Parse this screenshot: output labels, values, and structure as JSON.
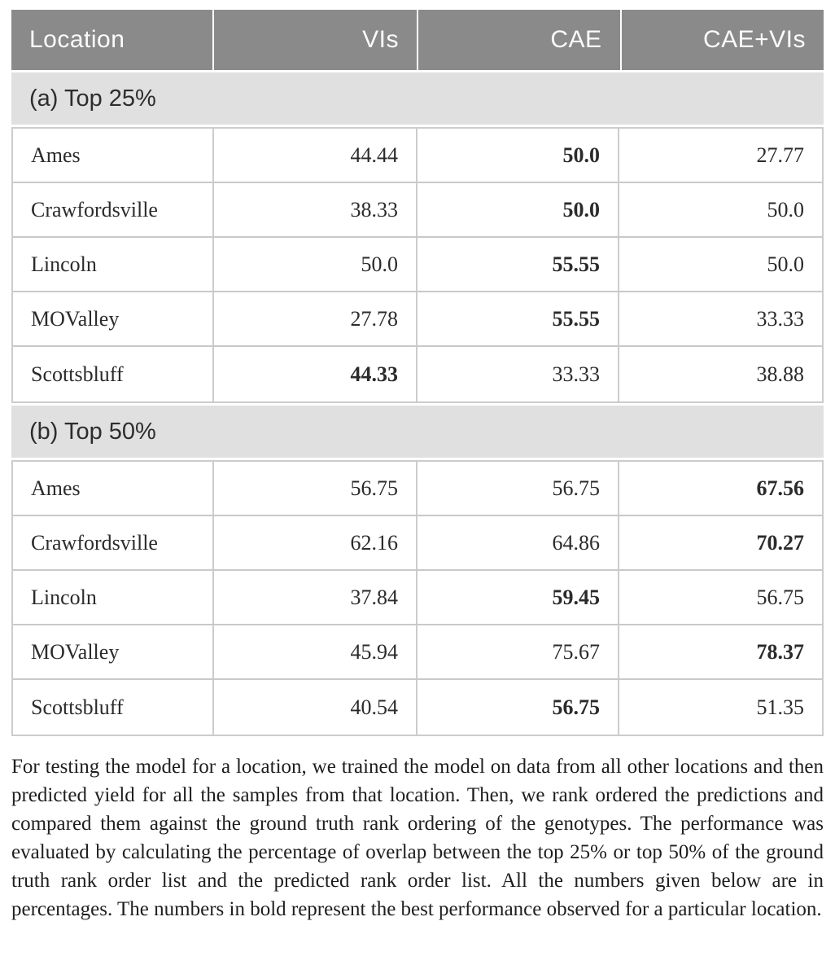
{
  "table": {
    "columns": [
      "Location",
      "VIs",
      "CAE",
      "CAE+VIs"
    ],
    "sections": [
      {
        "label": "(a) Top 25%",
        "rows": [
          {
            "location": "Ames",
            "values": [
              "44.44",
              "50.0",
              "27.77"
            ],
            "bold": [
              false,
              true,
              false
            ]
          },
          {
            "location": "Crawfordsville",
            "values": [
              "38.33",
              "50.0",
              "50.0"
            ],
            "bold": [
              false,
              true,
              false
            ]
          },
          {
            "location": "Lincoln",
            "values": [
              "50.0",
              "55.55",
              "50.0"
            ],
            "bold": [
              false,
              true,
              false
            ]
          },
          {
            "location": "MOValley",
            "values": [
              "27.78",
              "55.55",
              "33.33"
            ],
            "bold": [
              false,
              true,
              false
            ]
          },
          {
            "location": "Scottsbluff",
            "values": [
              "44.33",
              "33.33",
              "38.88"
            ],
            "bold": [
              true,
              false,
              false
            ]
          }
        ]
      },
      {
        "label": "(b) Top 50%",
        "rows": [
          {
            "location": "Ames",
            "values": [
              "56.75",
              "56.75",
              "67.56"
            ],
            "bold": [
              false,
              false,
              true
            ]
          },
          {
            "location": "Crawfordsville",
            "values": [
              "62.16",
              "64.86",
              "70.27"
            ],
            "bold": [
              false,
              false,
              true
            ]
          },
          {
            "location": "Lincoln",
            "values": [
              "37.84",
              "59.45",
              "56.75"
            ],
            "bold": [
              false,
              true,
              false
            ]
          },
          {
            "location": "MOValley",
            "values": [
              "45.94",
              "75.67",
              "78.37"
            ],
            "bold": [
              false,
              false,
              true
            ]
          },
          {
            "location": "Scottsbluff",
            "values": [
              "40.54",
              "56.75",
              "51.35"
            ],
            "bold": [
              false,
              true,
              false
            ]
          }
        ]
      }
    ]
  },
  "colors": {
    "header_bg": "#8a8a8a",
    "header_text": "#fbfbfb",
    "section_bg": "#e0e0e0",
    "row_border": "#c9c9c9",
    "column_border": "#cccccc"
  },
  "caption": "For testing the model for a location, we trained the model on data from all other locations and then predicted yield for all the samples from that location. Then, we rank ordered the predictions and compared them against the ground truth rank ordering of the genotypes. The performance was evaluated by calculating the percentage of overlap between the top 25% or top 50% of the ground truth rank order list and the predicted rank order list. All the numbers given below are in percentages. The numbers in bold represent the best performance observed for a particular location."
}
